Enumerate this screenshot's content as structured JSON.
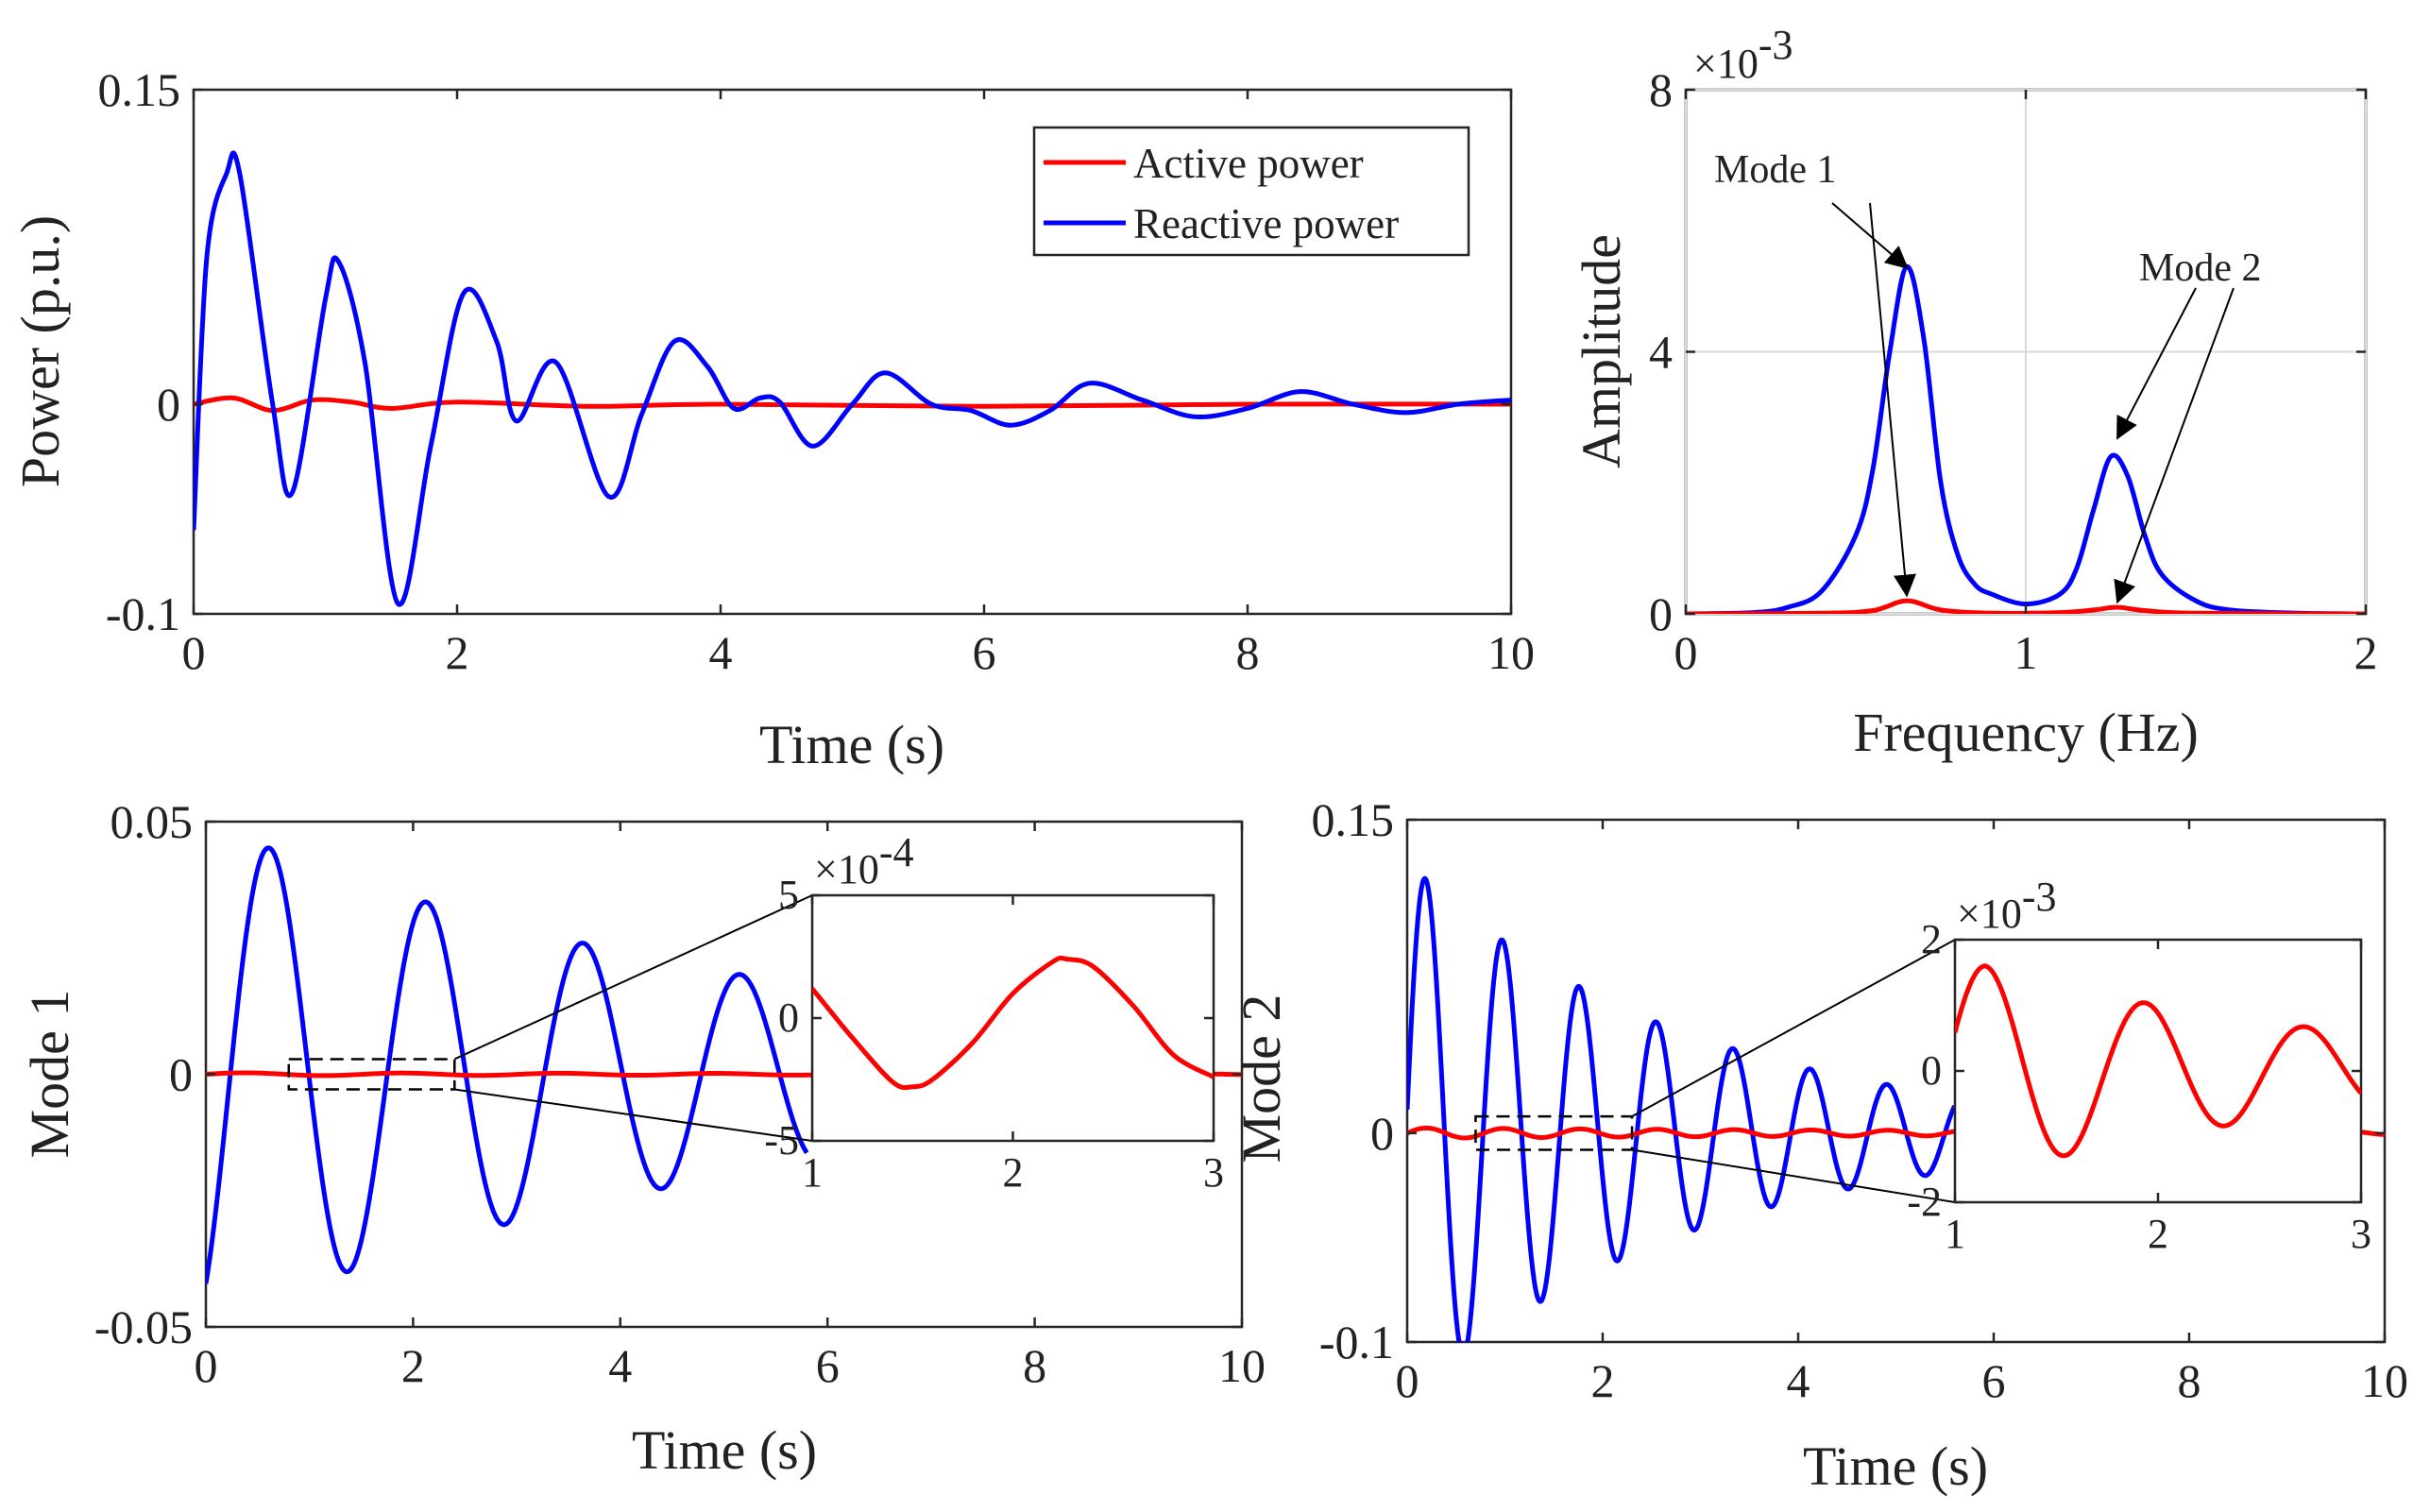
{
  "colors": {
    "active": "#ff0000",
    "reactive": "#0000ff"
  },
  "chart_data": [
    {
      "type": "line",
      "id": "top-left",
      "xlabel": "Time (s)",
      "ylabel": "Power (p.u.)",
      "xlim": [
        0,
        10
      ],
      "ylim": [
        -0.1,
        0.15
      ],
      "xticks": [
        0,
        2,
        4,
        6,
        8,
        10
      ],
      "yticks": [
        -0.1,
        0,
        0.15
      ],
      "xtick_labels": [
        "0",
        "2",
        "4",
        "6",
        "8",
        "10"
      ],
      "ytick_labels": [
        "-0.1",
        "0",
        "0.15"
      ],
      "legend": [
        "Active power",
        "Reactive power"
      ],
      "legend_position": "top-right",
      "series": [
        {
          "name": "Active power",
          "color": "#ff0000",
          "x": [
            0,
            0.3,
            0.6,
            0.9,
            1.2,
            1.5,
            2,
            3,
            4,
            6,
            8,
            10
          ],
          "y": [
            0,
            0.003,
            -0.003,
            0.002,
            0.001,
            -0.002,
            0.001,
            -0.001,
            0.0,
            -0.001,
            0.0,
            0.0
          ]
        },
        {
          "name": "Reactive power",
          "color": "#0000ff",
          "x": [
            0,
            0.1,
            0.25,
            0.35,
            0.6,
            0.75,
            1.0,
            1.1,
            1.3,
            1.55,
            1.8,
            2.05,
            2.3,
            2.45,
            2.75,
            3.15,
            3.4,
            3.65,
            3.9,
            4.1,
            4.3,
            4.45,
            4.7,
            5.0,
            5.25,
            5.6,
            5.9,
            6.2,
            6.5,
            6.8,
            7.2,
            7.6,
            8.0,
            8.4,
            8.8,
            9.2,
            9.6,
            10
          ],
          "y": [
            -0.06,
            0.07,
            0.11,
            0.11,
            0.0,
            -0.042,
            0.05,
            0.068,
            0.02,
            -0.095,
            -0.02,
            0.053,
            0.03,
            -0.008,
            0.02,
            -0.044,
            -0.005,
            0.03,
            0.018,
            -0.002,
            0.003,
            0.001,
            -0.02,
            0.0,
            0.015,
            0.0,
            -0.003,
            -0.01,
            -0.003,
            0.01,
            0.002,
            -0.006,
            -0.002,
            0.006,
            0.0,
            -0.004,
            0.0,
            0.002
          ]
        }
      ]
    },
    {
      "type": "line",
      "id": "top-right",
      "xlabel": "Frequency (Hz)",
      "ylabel": "Amplitude",
      "scale_factor_label": "×10",
      "scale_factor_exponent": "-3",
      "xlim": [
        0,
        2
      ],
      "ylim": [
        0,
        8
      ],
      "xticks": [
        0,
        1,
        2
      ],
      "yticks": [
        0,
        4,
        8
      ],
      "xtick_labels": [
        "0",
        "1",
        "2"
      ],
      "ytick_labels": [
        "0",
        "4",
        "8"
      ],
      "grid": true,
      "annotations": [
        {
          "text": "Mode 1",
          "points_to": [
            [
              0.65,
              5.2
            ],
            [
              0.65,
              0.2
            ]
          ]
        },
        {
          "text": "Mode 2",
          "points_to": [
            [
              1.27,
              2.6
            ],
            [
              1.27,
              0.1
            ]
          ]
        }
      ],
      "series": [
        {
          "name": "Reactive power",
          "color": "#0000ff",
          "x": [
            0,
            0.2,
            0.3,
            0.4,
            0.5,
            0.55,
            0.6,
            0.65,
            0.7,
            0.75,
            0.8,
            0.85,
            0.9,
            1.0,
            1.1,
            1.15,
            1.2,
            1.25,
            1.3,
            1.35,
            1.4,
            1.5,
            1.6,
            1.8,
            2.0
          ],
          "y": [
            0,
            0.02,
            0.1,
            0.35,
            1.2,
            2.2,
            4.0,
            5.3,
            4.2,
            2.0,
            0.9,
            0.45,
            0.3,
            0.15,
            0.3,
            0.7,
            1.6,
            2.4,
            2.1,
            1.2,
            0.6,
            0.2,
            0.06,
            0.01,
            0
          ]
        },
        {
          "name": "Active power",
          "color": "#ff0000",
          "x": [
            0,
            0.4,
            0.55,
            0.65,
            0.75,
            0.9,
            1.1,
            1.2,
            1.27,
            1.35,
            1.5,
            2.0
          ],
          "y": [
            0,
            0.01,
            0.05,
            0.2,
            0.06,
            0.01,
            0.02,
            0.06,
            0.1,
            0.05,
            0.01,
            0
          ]
        }
      ]
    },
    {
      "type": "line",
      "id": "bottom-left",
      "xlabel": "Time (s)",
      "ylabel": "Mode 1",
      "xlim": [
        0,
        10
      ],
      "ylim": [
        -0.05,
        0.05
      ],
      "xticks": [
        0,
        2,
        4,
        6,
        8,
        10
      ],
      "yticks": [
        -0.05,
        0,
        0.05
      ],
      "xtick_labels": [
        "0",
        "2",
        "4",
        "6",
        "8",
        "10"
      ],
      "ytick_labels": [
        "-0.05",
        "0",
        "0.05"
      ],
      "series": [
        {
          "name": "Reactive power",
          "color": "#0000ff",
          "model": "damped_sine",
          "amplitude": 0.05,
          "decay": 0.18,
          "frequency_hz": 0.66,
          "phase_deg": -56,
          "visible_x_range": [
            0,
            5.8
          ]
        },
        {
          "name": "Active power",
          "color": "#ff0000",
          "model": "damped_sine",
          "amplitude": 0.0003,
          "decay": 0.1,
          "frequency_hz": 0.66,
          "phase_deg": 0
        }
      ],
      "zoom_box": {
        "xlim": [
          0.8,
          2.4
        ],
        "ylim": [
          -0.003,
          0.003
        ]
      },
      "inset": {
        "xlim": [
          1,
          3
        ],
        "ylim": [
          -5,
          5
        ],
        "xticks": [
          1,
          2,
          3
        ],
        "yticks": [
          -5,
          0,
          5
        ],
        "xtick_labels": [
          "1",
          "2",
          "3"
        ],
        "ytick_labels": [
          "-5",
          "0",
          "5"
        ],
        "scale_factor_label": "×10",
        "scale_factor_exponent": "-4",
        "series": [
          {
            "name": "Active power",
            "color": "#ff0000",
            "x": [
              1,
              1.2,
              1.4,
              1.5,
              1.6,
              1.8,
              2.0,
              2.2,
              2.27,
              2.4,
              2.6,
              2.8,
              3.0
            ],
            "y": [
              1.2,
              -0.8,
              -2.6,
              -2.8,
              -2.5,
              -1.0,
              1.0,
              2.3,
              2.4,
              2.1,
              0.5,
              -1.5,
              -2.4
            ]
          }
        ]
      }
    },
    {
      "type": "line",
      "id": "bottom-right",
      "xlabel": "Time (s)",
      "ylabel": "Mode 2",
      "xlim": [
        0,
        10
      ],
      "ylim": [
        -0.1,
        0.15
      ],
      "xticks": [
        0,
        2,
        4,
        6,
        8,
        10
      ],
      "yticks": [
        -0.1,
        0,
        0.15
      ],
      "xtick_labels": [
        "0",
        "2",
        "4",
        "6",
        "8",
        "10"
      ],
      "ytick_labels": [
        "-0.1",
        "0",
        "0.15"
      ],
      "series": [
        {
          "name": "Reactive power",
          "color": "#0000ff",
          "model": "damped_sine",
          "amplitude": 0.13,
          "decay": 0.35,
          "frequency_hz": 1.27,
          "phase_deg": 5,
          "visible_x_range": [
            0,
            5.6
          ]
        },
        {
          "name": "Active power",
          "color": "#ff0000",
          "model": "damped_sine",
          "amplitude": 0.0025,
          "decay": 0.12,
          "frequency_hz": 1.27,
          "phase_deg": 0
        }
      ],
      "zoom_box": {
        "xlim": [
          0.7,
          2.3
        ],
        "ylim": [
          -0.008,
          0.008
        ]
      },
      "inset": {
        "xlim": [
          1,
          3
        ],
        "ylim": [
          -2,
          2
        ],
        "xticks": [
          1,
          2,
          3
        ],
        "yticks": [
          -2,
          0,
          2
        ],
        "xtick_labels": [
          "1",
          "2",
          "3"
        ],
        "ytick_labels": [
          "-2",
          "0",
          "2"
        ],
        "scale_factor_label": "×10",
        "scale_factor_exponent": "-3",
        "series": [
          {
            "name": "Active power",
            "color": "#ff0000",
            "model": "damped_sine",
            "amplitude": 1.6,
            "decay": 0.55,
            "frequency_hz": 1.27,
            "phase_deg": 90,
            "t0": 1.15,
            "offset": 0
          }
        ]
      }
    }
  ]
}
